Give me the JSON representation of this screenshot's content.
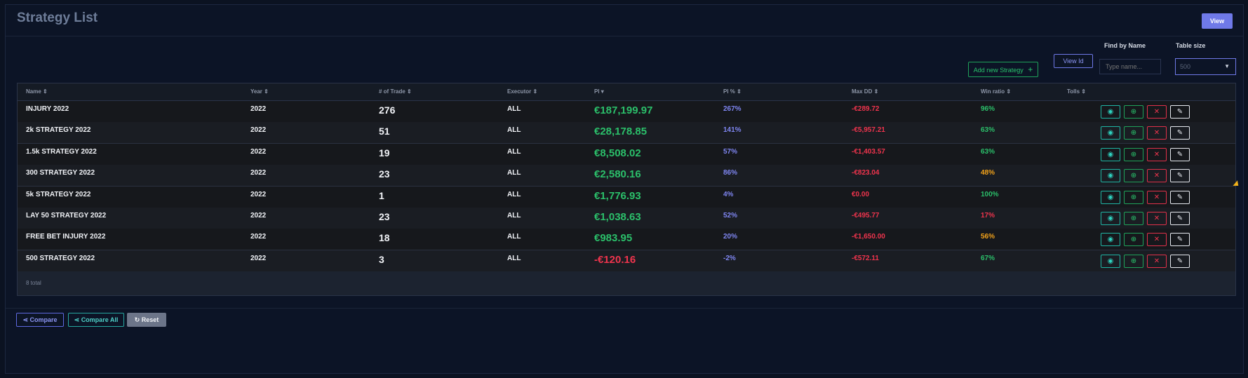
{
  "page": {
    "title": "Strategy List",
    "view_button": "View"
  },
  "toolbar": {
    "add_strategy_label": "Add new Strategy",
    "add_strategy_icon": "+",
    "view_id_label": "View Id",
    "find_label": "Find by Name",
    "find_placeholder": "Type name...",
    "table_size_label": "Table size",
    "table_size_value": "500"
  },
  "table": {
    "columns": [
      "Name",
      "Year",
      "# of Trade",
      "Executor",
      "Pl",
      "Pl %",
      "Max DD",
      "Win ratio",
      "Tolls"
    ],
    "rows": [
      {
        "name": "INJURY 2022",
        "year": "2022",
        "trades": "276",
        "executor": "ALL",
        "pl": "€187,199.97",
        "pl_pct": "267%",
        "max_dd": "-€289.72",
        "win": "96%",
        "pl_color": "green",
        "win_color": "green",
        "pct_color": "blue"
      },
      {
        "name": "2k STRATEGY 2022",
        "year": "2022",
        "trades": "51",
        "executor": "ALL",
        "pl": "€28,178.85",
        "pl_pct": "141%",
        "max_dd": "-€5,957.21",
        "win": "63%",
        "pl_color": "green",
        "win_color": "green",
        "pct_color": "blue"
      },
      {
        "name": "1.5k STRATEGY 2022",
        "year": "2022",
        "trades": "19",
        "executor": "ALL",
        "pl": "€8,508.02",
        "pl_pct": "57%",
        "max_dd": "-€1,403.57",
        "win": "63%",
        "pl_color": "green",
        "win_color": "green",
        "pct_color": "blue"
      },
      {
        "name": "300 STRATEGY 2022",
        "year": "2022",
        "trades": "23",
        "executor": "ALL",
        "pl": "€2,580.16",
        "pl_pct": "86%",
        "max_dd": "-€823.04",
        "win": "48%",
        "pl_color": "green",
        "win_color": "orange",
        "pct_color": "blue"
      },
      {
        "name": "5k STRATEGY 2022",
        "year": "2022",
        "trades": "1",
        "executor": "ALL",
        "pl": "€1,776.93",
        "pl_pct": "4%",
        "max_dd": "€0.00",
        "win": "100%",
        "pl_color": "green",
        "win_color": "green",
        "pct_color": "blue"
      },
      {
        "name": "LAY 50 STRATEGY 2022",
        "year": "2022",
        "trades": "23",
        "executor": "ALL",
        "pl": "€1,038.63",
        "pl_pct": "52%",
        "max_dd": "-€495.77",
        "win": "17%",
        "pl_color": "green",
        "win_color": "red",
        "pct_color": "blue"
      },
      {
        "name": "FREE BET INJURY 2022",
        "year": "2022",
        "trades": "18",
        "executor": "ALL",
        "pl": "€983.95",
        "pl_pct": "20%",
        "max_dd": "-€1,650.00",
        "win": "56%",
        "pl_color": "green",
        "win_color": "orange",
        "pct_color": "blue"
      },
      {
        "name": "500 STRATEGY 2022",
        "year": "2022",
        "trades": "3",
        "executor": "ALL",
        "pl": "-€120.16",
        "pl_pct": "-2%",
        "max_dd": "-€572.11",
        "win": "67%",
        "pl_color": "red",
        "win_color": "green",
        "pct_color": "blue"
      }
    ],
    "total_label": "8 total"
  },
  "footer": {
    "compare_label": "Compare",
    "compare_all_label": "Compare All",
    "reset_label": "Reset"
  },
  "colors": {
    "accent": "#6f79e8",
    "positive": "#2bbf6a",
    "negative": "#f0344d",
    "warning": "#f2a21a"
  },
  "icons": {
    "view": "eye-icon",
    "add": "plus-circle-icon",
    "delete": "close-icon",
    "edit": "edit-icon",
    "compare": "share-icon",
    "reset": "refresh-icon"
  }
}
